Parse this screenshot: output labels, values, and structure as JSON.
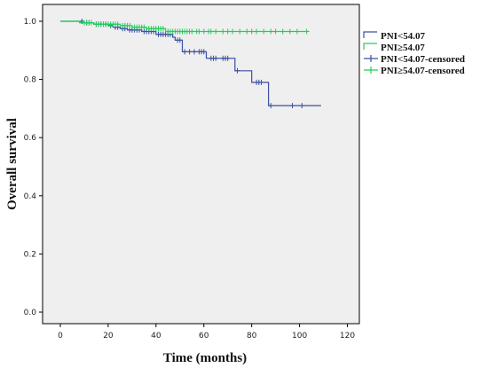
{
  "chart_data": {
    "type": "line",
    "subtype": "kaplan-meier-step",
    "title": "",
    "xlabel": "Time (months)",
    "ylabel": "Overall survival",
    "xlim": [
      0,
      125
    ],
    "ylim": [
      0,
      1.05
    ],
    "xticks": [
      0,
      20,
      40,
      60,
      80,
      100,
      120
    ],
    "yticks": [
      0.0,
      0.2,
      0.4,
      0.6,
      0.8,
      1.0
    ],
    "xtick_labels": [
      "0",
      "20",
      "40",
      "60",
      "80",
      "100",
      "120"
    ],
    "ytick_labels": [
      "0.0",
      "0.2",
      "0.4",
      "0.6",
      "0.8",
      "1.0"
    ],
    "grid": false,
    "legend_position": "right",
    "legend": [
      "PNI<54.07",
      "PNI≥54.07",
      "PNI<54.07-censored",
      "PNI≥54.07-censored"
    ],
    "series": [
      {
        "name": "PNI<54.07",
        "color": "#3b4fa3",
        "steps": [
          [
            0,
            1.0
          ],
          [
            9,
            1.0
          ],
          [
            9,
            0.995
          ],
          [
            14,
            0.995
          ],
          [
            14,
            0.99
          ],
          [
            20,
            0.99
          ],
          [
            20,
            0.985
          ],
          [
            22,
            0.985
          ],
          [
            22,
            0.98
          ],
          [
            25,
            0.98
          ],
          [
            25,
            0.975
          ],
          [
            28,
            0.975
          ],
          [
            28,
            0.97
          ],
          [
            34,
            0.97
          ],
          [
            34,
            0.965
          ],
          [
            40,
            0.965
          ],
          [
            40,
            0.955
          ],
          [
            47,
            0.955
          ],
          [
            47,
            0.945
          ],
          [
            48,
            0.945
          ],
          [
            48,
            0.935
          ],
          [
            51,
            0.935
          ],
          [
            51,
            0.895
          ],
          [
            61,
            0.895
          ],
          [
            61,
            0.873
          ],
          [
            73,
            0.873
          ],
          [
            73,
            0.83
          ],
          [
            80,
            0.83
          ],
          [
            80,
            0.79
          ],
          [
            87,
            0.79
          ],
          [
            87,
            0.71
          ],
          [
            109,
            0.71
          ]
        ],
        "censored": [
          [
            9,
            1.0
          ],
          [
            10,
            0.995
          ],
          [
            11,
            0.995
          ],
          [
            12,
            0.995
          ],
          [
            13,
            0.995
          ],
          [
            15,
            0.99
          ],
          [
            16,
            0.99
          ],
          [
            17,
            0.99
          ],
          [
            18,
            0.99
          ],
          [
            19,
            0.99
          ],
          [
            21,
            0.985
          ],
          [
            23,
            0.98
          ],
          [
            24,
            0.98
          ],
          [
            26,
            0.975
          ],
          [
            27,
            0.975
          ],
          [
            29,
            0.97
          ],
          [
            30,
            0.97
          ],
          [
            31,
            0.97
          ],
          [
            32,
            0.97
          ],
          [
            33,
            0.97
          ],
          [
            35,
            0.965
          ],
          [
            36,
            0.965
          ],
          [
            37,
            0.965
          ],
          [
            38,
            0.965
          ],
          [
            39,
            0.965
          ],
          [
            41,
            0.955
          ],
          [
            42,
            0.955
          ],
          [
            43,
            0.955
          ],
          [
            44,
            0.955
          ],
          [
            45,
            0.955
          ],
          [
            46,
            0.955
          ],
          [
            49,
            0.935
          ],
          [
            50,
            0.935
          ],
          [
            52,
            0.895
          ],
          [
            54,
            0.895
          ],
          [
            56,
            0.895
          ],
          [
            58,
            0.895
          ],
          [
            59,
            0.895
          ],
          [
            60,
            0.895
          ],
          [
            63,
            0.873
          ],
          [
            64,
            0.873
          ],
          [
            65,
            0.873
          ],
          [
            68,
            0.873
          ],
          [
            69,
            0.873
          ],
          [
            70,
            0.873
          ],
          [
            74,
            0.83
          ],
          [
            82,
            0.79
          ],
          [
            83,
            0.79
          ],
          [
            84,
            0.79
          ],
          [
            88,
            0.71
          ],
          [
            97,
            0.71
          ],
          [
            101,
            0.71
          ]
        ]
      },
      {
        "name": "PNI≥54.07",
        "color": "#1fcf5a",
        "steps": [
          [
            0,
            1.0
          ],
          [
            8,
            1.0
          ],
          [
            8,
            0.995
          ],
          [
            14,
            0.995
          ],
          [
            14,
            0.99
          ],
          [
            25,
            0.99
          ],
          [
            25,
            0.985
          ],
          [
            30,
            0.985
          ],
          [
            30,
            0.98
          ],
          [
            36,
            0.98
          ],
          [
            36,
            0.975
          ],
          [
            44,
            0.975
          ],
          [
            44,
            0.965
          ],
          [
            103,
            0.965
          ]
        ],
        "censored": [
          [
            10,
            0.995
          ],
          [
            11,
            0.995
          ],
          [
            12,
            0.995
          ],
          [
            13,
            0.995
          ],
          [
            15,
            0.99
          ],
          [
            16,
            0.99
          ],
          [
            17,
            0.99
          ],
          [
            18,
            0.99
          ],
          [
            19,
            0.99
          ],
          [
            20,
            0.99
          ],
          [
            21,
            0.99
          ],
          [
            22,
            0.99
          ],
          [
            23,
            0.99
          ],
          [
            24,
            0.99
          ],
          [
            26,
            0.985
          ],
          [
            27,
            0.985
          ],
          [
            28,
            0.985
          ],
          [
            29,
            0.985
          ],
          [
            31,
            0.98
          ],
          [
            32,
            0.98
          ],
          [
            33,
            0.98
          ],
          [
            34,
            0.98
          ],
          [
            35,
            0.98
          ],
          [
            37,
            0.975
          ],
          [
            38,
            0.975
          ],
          [
            39,
            0.975
          ],
          [
            40,
            0.975
          ],
          [
            41,
            0.975
          ],
          [
            42,
            0.975
          ],
          [
            43,
            0.975
          ],
          [
            45,
            0.965
          ],
          [
            46,
            0.965
          ],
          [
            47,
            0.965
          ],
          [
            48,
            0.965
          ],
          [
            49,
            0.965
          ],
          [
            50,
            0.965
          ],
          [
            51,
            0.965
          ],
          [
            52,
            0.965
          ],
          [
            53,
            0.965
          ],
          [
            54,
            0.965
          ],
          [
            55,
            0.965
          ],
          [
            57,
            0.965
          ],
          [
            58,
            0.965
          ],
          [
            60,
            0.965
          ],
          [
            62,
            0.965
          ],
          [
            63,
            0.965
          ],
          [
            65,
            0.965
          ],
          [
            68,
            0.965
          ],
          [
            70,
            0.965
          ],
          [
            72,
            0.965
          ],
          [
            75,
            0.965
          ],
          [
            78,
            0.965
          ],
          [
            80,
            0.965
          ],
          [
            82,
            0.965
          ],
          [
            85,
            0.965
          ],
          [
            88,
            0.965
          ],
          [
            90,
            0.965
          ],
          [
            93,
            0.965
          ],
          [
            96,
            0.965
          ],
          [
            99,
            0.965
          ],
          [
            103,
            0.965
          ]
        ]
      }
    ]
  }
}
